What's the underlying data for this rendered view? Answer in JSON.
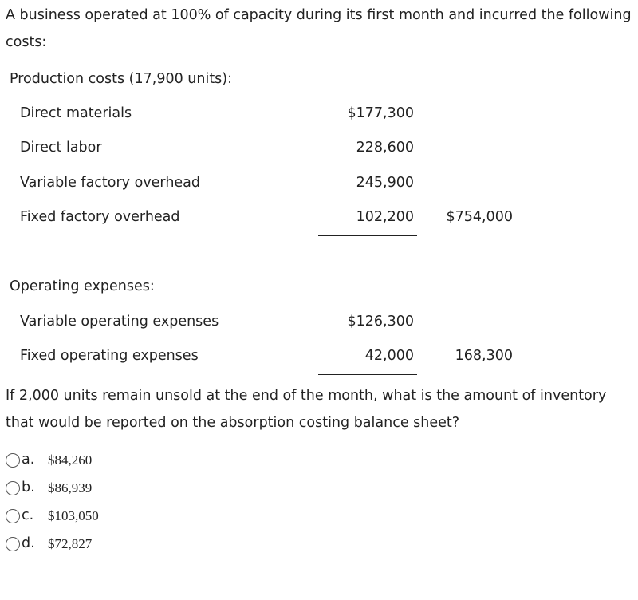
{
  "intro": "A business operated at 100% of capacity during its first month and incurred the following costs:",
  "production": {
    "heading": "Production costs (17,900 units):",
    "rows": [
      [
        "Direct materials",
        "$177,300",
        ""
      ],
      [
        "Direct labor",
        "228,600",
        ""
      ],
      [
        "Variable factory overhead",
        "245,900",
        ""
      ],
      [
        "Fixed factory overhead",
        "102,200",
        "$754,000"
      ]
    ]
  },
  "operating": {
    "heading": "Operating expenses:",
    "rows": [
      [
        "Variable operating expenses",
        "$126,300",
        ""
      ],
      [
        "Fixed operating expenses",
        "42,000",
        "168,300"
      ]
    ]
  },
  "question": "If 2,000 units remain unsold at the end of the month, what is the amount of inventory that would be reported on the absorption costing balance sheet?",
  "options": [
    [
      "a.",
      "$84,260"
    ],
    [
      "b.",
      "$86,939"
    ],
    [
      "c.",
      "$103,050"
    ],
    [
      "d.",
      "$72,827"
    ]
  ]
}
